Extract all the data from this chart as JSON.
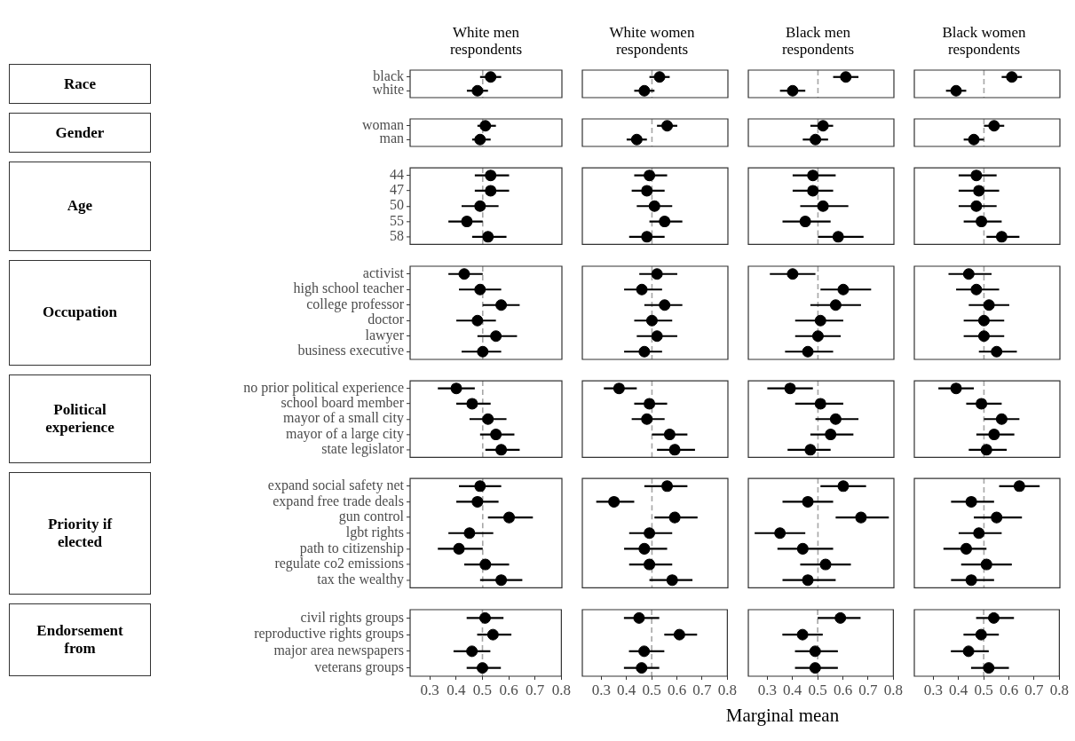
{
  "chart_data": [
    {
      "type": "scatter",
      "title": "White men respondents",
      "ylabel": "Race",
      "orientation": "horizontal",
      "categories": [
        "black",
        "white"
      ],
      "values": [
        0.53,
        0.48
      ],
      "errors": [
        [
          0.49,
          0.57
        ],
        [
          0.44,
          0.52
        ]
      ],
      "color": "#000000",
      "marker": "circle",
      "xlim": [
        0.225,
        0.8
      ],
      "xticks": [
        0.3,
        0.4,
        0.5,
        0.6,
        0.7,
        0.8
      ],
      "tick_labels": "y",
      "grid": false,
      "ref_lines": [
        {
          "axis": "x",
          "value": 0.5,
          "color": "#a6a6a6",
          "line_style": "dashed"
        }
      ]
    },
    {
      "type": "scatter",
      "title": "White women respondents",
      "orientation": "horizontal",
      "categories": [
        "black",
        "white"
      ],
      "values": [
        0.53,
        0.47
      ],
      "errors": [
        [
          0.49,
          0.57
        ],
        [
          0.43,
          0.51
        ]
      ],
      "color": "#000000",
      "marker": "circle",
      "xlim": [
        0.225,
        0.8
      ],
      "xticks": [
        0.3,
        0.4,
        0.5,
        0.6,
        0.7,
        0.8
      ],
      "tick_labels": false,
      "grid": false,
      "ref_lines": [
        {
          "axis": "x",
          "value": 0.5,
          "color": "#a6a6a6",
          "line_style": "dashed"
        }
      ]
    },
    {
      "type": "scatter",
      "title": "Black men respondents",
      "orientation": "horizontal",
      "categories": [
        "black",
        "white"
      ],
      "values": [
        0.61,
        0.4
      ],
      "errors": [
        [
          0.56,
          0.66
        ],
        [
          0.35,
          0.45
        ]
      ],
      "color": "#000000",
      "marker": "circle",
      "xlim": [
        0.225,
        0.8
      ],
      "xticks": [
        0.3,
        0.4,
        0.5,
        0.6,
        0.7,
        0.8
      ],
      "tick_labels": false,
      "grid": false,
      "ref_lines": [
        {
          "axis": "x",
          "value": 0.5,
          "color": "#a6a6a6",
          "line_style": "dashed"
        }
      ]
    },
    {
      "type": "scatter",
      "title": "Black women respondents",
      "orientation": "horizontal",
      "categories": [
        "black",
        "white"
      ],
      "values": [
        0.61,
        0.39
      ],
      "errors": [
        [
          0.57,
          0.65
        ],
        [
          0.35,
          0.43
        ]
      ],
      "color": "#000000",
      "marker": "circle",
      "xlim": [
        0.225,
        0.8
      ],
      "xticks": [
        0.3,
        0.4,
        0.5,
        0.6,
        0.7,
        0.8
      ],
      "tick_labels": false,
      "grid": false,
      "ref_lines": [
        {
          "axis": "x",
          "value": 0.5,
          "color": "#a6a6a6",
          "line_style": "dashed"
        }
      ]
    },
    {
      "type": "scatter",
      "ylabel": "Gender",
      "orientation": "horizontal",
      "categories": [
        "woman",
        "man"
      ],
      "values": [
        0.51,
        0.49
      ],
      "errors": [
        [
          0.48,
          0.55
        ],
        [
          0.46,
          0.53
        ]
      ],
      "color": "#000000",
      "marker": "circle",
      "xlim": [
        0.225,
        0.8
      ],
      "xticks": [
        0.3,
        0.4,
        0.5,
        0.6,
        0.7,
        0.8
      ],
      "tick_labels": "y",
      "grid": false,
      "ref_lines": [
        {
          "axis": "x",
          "value": 0.5,
          "color": "#a6a6a6",
          "line_style": "dashed"
        }
      ]
    },
    {
      "type": "scatter",
      "orientation": "horizontal",
      "categories": [
        "woman",
        "man"
      ],
      "values": [
        0.56,
        0.44
      ],
      "errors": [
        [
          0.52,
          0.6
        ],
        [
          0.4,
          0.48
        ]
      ],
      "color": "#000000",
      "marker": "circle",
      "xlim": [
        0.225,
        0.8
      ],
      "xticks": [
        0.3,
        0.4,
        0.5,
        0.6,
        0.7,
        0.8
      ],
      "tick_labels": false,
      "grid": false,
      "ref_lines": [
        {
          "axis": "x",
          "value": 0.5,
          "color": "#a6a6a6",
          "line_style": "dashed"
        }
      ]
    },
    {
      "type": "scatter",
      "orientation": "horizontal",
      "categories": [
        "woman",
        "man"
      ],
      "values": [
        0.52,
        0.49
      ],
      "errors": [
        [
          0.47,
          0.56
        ],
        [
          0.44,
          0.54
        ]
      ],
      "color": "#000000",
      "marker": "circle",
      "xlim": [
        0.225,
        0.8
      ],
      "xticks": [
        0.3,
        0.4,
        0.5,
        0.6,
        0.7,
        0.8
      ],
      "tick_labels": false,
      "grid": false,
      "ref_lines": [
        {
          "axis": "x",
          "value": 0.5,
          "color": "#a6a6a6",
          "line_style": "dashed"
        }
      ]
    },
    {
      "type": "scatter",
      "orientation": "horizontal",
      "categories": [
        "woman",
        "man"
      ],
      "values": [
        0.54,
        0.46
      ],
      "errors": [
        [
          0.5,
          0.58
        ],
        [
          0.42,
          0.5
        ]
      ],
      "color": "#000000",
      "marker": "circle",
      "xlim": [
        0.225,
        0.8
      ],
      "xticks": [
        0.3,
        0.4,
        0.5,
        0.6,
        0.7,
        0.8
      ],
      "tick_labels": false,
      "grid": false,
      "ref_lines": [
        {
          "axis": "x",
          "value": 0.5,
          "color": "#a6a6a6",
          "line_style": "dashed"
        }
      ]
    },
    {
      "type": "scatter",
      "ylabel": "Age",
      "orientation": "horizontal",
      "categories": [
        "44",
        "47",
        "50",
        "55",
        "58"
      ],
      "values": [
        0.53,
        0.53,
        0.49,
        0.44,
        0.52
      ],
      "errors": [
        [
          0.47,
          0.6
        ],
        [
          0.47,
          0.6
        ],
        [
          0.42,
          0.56
        ],
        [
          0.37,
          0.5
        ],
        [
          0.46,
          0.59
        ]
      ],
      "color": "#000000",
      "marker": "circle",
      "xlim": [
        0.225,
        0.8
      ],
      "xticks": [
        0.3,
        0.4,
        0.5,
        0.6,
        0.7,
        0.8
      ],
      "tick_labels": "y",
      "grid": false,
      "ref_lines": [
        {
          "axis": "x",
          "value": 0.5,
          "color": "#a6a6a6",
          "line_style": "dashed"
        }
      ]
    },
    {
      "type": "scatter",
      "orientation": "horizontal",
      "categories": [
        "44",
        "47",
        "50",
        "55",
        "58"
      ],
      "values": [
        0.49,
        0.48,
        0.51,
        0.55,
        0.48
      ],
      "errors": [
        [
          0.43,
          0.56
        ],
        [
          0.42,
          0.55
        ],
        [
          0.44,
          0.58
        ],
        [
          0.49,
          0.62
        ],
        [
          0.41,
          0.55
        ]
      ],
      "color": "#000000",
      "marker": "circle",
      "xlim": [
        0.225,
        0.8
      ],
      "xticks": [
        0.3,
        0.4,
        0.5,
        0.6,
        0.7,
        0.8
      ],
      "tick_labels": false,
      "grid": false,
      "ref_lines": [
        {
          "axis": "x",
          "value": 0.5,
          "color": "#a6a6a6",
          "line_style": "dashed"
        }
      ]
    },
    {
      "type": "scatter",
      "orientation": "horizontal",
      "categories": [
        "44",
        "47",
        "50",
        "55",
        "58"
      ],
      "values": [
        0.48,
        0.48,
        0.52,
        0.45,
        0.58
      ],
      "errors": [
        [
          0.4,
          0.57
        ],
        [
          0.4,
          0.56
        ],
        [
          0.43,
          0.62
        ],
        [
          0.36,
          0.55
        ],
        [
          0.5,
          0.68
        ]
      ],
      "color": "#000000",
      "marker": "circle",
      "xlim": [
        0.225,
        0.8
      ],
      "xticks": [
        0.3,
        0.4,
        0.5,
        0.6,
        0.7,
        0.8
      ],
      "tick_labels": false,
      "grid": false,
      "ref_lines": [
        {
          "axis": "x",
          "value": 0.5,
          "color": "#a6a6a6",
          "line_style": "dashed"
        }
      ]
    },
    {
      "type": "scatter",
      "orientation": "horizontal",
      "categories": [
        "44",
        "47",
        "50",
        "55",
        "58"
      ],
      "values": [
        0.47,
        0.48,
        0.47,
        0.49,
        0.57
      ],
      "errors": [
        [
          0.4,
          0.55
        ],
        [
          0.4,
          0.56
        ],
        [
          0.4,
          0.55
        ],
        [
          0.42,
          0.57
        ],
        [
          0.51,
          0.64
        ]
      ],
      "color": "#000000",
      "marker": "circle",
      "xlim": [
        0.225,
        0.8
      ],
      "xticks": [
        0.3,
        0.4,
        0.5,
        0.6,
        0.7,
        0.8
      ],
      "tick_labels": false,
      "grid": false,
      "ref_lines": [
        {
          "axis": "x",
          "value": 0.5,
          "color": "#a6a6a6",
          "line_style": "dashed"
        }
      ]
    },
    {
      "type": "scatter",
      "ylabel": "Occupation",
      "orientation": "horizontal",
      "categories": [
        "activist",
        "high school teacher",
        "college professor",
        "doctor",
        "lawyer",
        "business executive"
      ],
      "values": [
        0.43,
        0.49,
        0.57,
        0.48,
        0.55,
        0.5
      ],
      "errors": [
        [
          0.37,
          0.5
        ],
        [
          0.41,
          0.57
        ],
        [
          0.5,
          0.64
        ],
        [
          0.4,
          0.55
        ],
        [
          0.48,
          0.63
        ],
        [
          0.42,
          0.57
        ]
      ],
      "color": "#000000",
      "marker": "circle",
      "xlim": [
        0.225,
        0.8
      ],
      "xticks": [
        0.3,
        0.4,
        0.5,
        0.6,
        0.7,
        0.8
      ],
      "tick_labels": "y",
      "grid": false,
      "ref_lines": [
        {
          "axis": "x",
          "value": 0.5,
          "color": "#a6a6a6",
          "line_style": "dashed"
        }
      ]
    },
    {
      "type": "scatter",
      "orientation": "horizontal",
      "categories": [
        "activist",
        "high school teacher",
        "college professor",
        "doctor",
        "lawyer",
        "business executive"
      ],
      "values": [
        0.52,
        0.46,
        0.55,
        0.5,
        0.52,
        0.47
      ],
      "errors": [
        [
          0.45,
          0.6
        ],
        [
          0.39,
          0.54
        ],
        [
          0.47,
          0.62
        ],
        [
          0.43,
          0.58
        ],
        [
          0.44,
          0.6
        ],
        [
          0.39,
          0.54
        ]
      ],
      "color": "#000000",
      "marker": "circle",
      "xlim": [
        0.225,
        0.8
      ],
      "xticks": [
        0.3,
        0.4,
        0.5,
        0.6,
        0.7,
        0.8
      ],
      "tick_labels": false,
      "grid": false,
      "ref_lines": [
        {
          "axis": "x",
          "value": 0.5,
          "color": "#a6a6a6",
          "line_style": "dashed"
        }
      ]
    },
    {
      "type": "scatter",
      "orientation": "horizontal",
      "categories": [
        "activist",
        "high school teacher",
        "college professor",
        "doctor",
        "lawyer",
        "business executive"
      ],
      "values": [
        0.4,
        0.6,
        0.57,
        0.51,
        0.5,
        0.46
      ],
      "errors": [
        [
          0.31,
          0.49
        ],
        [
          0.51,
          0.71
        ],
        [
          0.47,
          0.67
        ],
        [
          0.41,
          0.6
        ],
        [
          0.41,
          0.59
        ],
        [
          0.37,
          0.56
        ]
      ],
      "color": "#000000",
      "marker": "circle",
      "xlim": [
        0.225,
        0.8
      ],
      "xticks": [
        0.3,
        0.4,
        0.5,
        0.6,
        0.7,
        0.8
      ],
      "tick_labels": false,
      "grid": false,
      "ref_lines": [
        {
          "axis": "x",
          "value": 0.5,
          "color": "#a6a6a6",
          "line_style": "dashed"
        }
      ]
    },
    {
      "type": "scatter",
      "orientation": "horizontal",
      "categories": [
        "activist",
        "high school teacher",
        "college professor",
        "doctor",
        "lawyer",
        "business executive"
      ],
      "values": [
        0.44,
        0.47,
        0.52,
        0.5,
        0.5,
        0.55
      ],
      "errors": [
        [
          0.36,
          0.53
        ],
        [
          0.39,
          0.56
        ],
        [
          0.44,
          0.6
        ],
        [
          0.42,
          0.58
        ],
        [
          0.42,
          0.58
        ],
        [
          0.48,
          0.63
        ]
      ],
      "color": "#000000",
      "marker": "circle",
      "xlim": [
        0.225,
        0.8
      ],
      "xticks": [
        0.3,
        0.4,
        0.5,
        0.6,
        0.7,
        0.8
      ],
      "tick_labels": false,
      "grid": false,
      "ref_lines": [
        {
          "axis": "x",
          "value": 0.5,
          "color": "#a6a6a6",
          "line_style": "dashed"
        }
      ]
    },
    {
      "type": "scatter",
      "ylabel": "Political experience",
      "orientation": "horizontal",
      "categories": [
        "no prior political experience",
        "school board member",
        "mayor of a small city",
        "mayor of a large city",
        "state legislator"
      ],
      "values": [
        0.4,
        0.46,
        0.52,
        0.55,
        0.57
      ],
      "errors": [
        [
          0.33,
          0.47
        ],
        [
          0.4,
          0.53
        ],
        [
          0.45,
          0.59
        ],
        [
          0.49,
          0.62
        ],
        [
          0.51,
          0.64
        ]
      ],
      "color": "#000000",
      "marker": "circle",
      "xlim": [
        0.225,
        0.8
      ],
      "xticks": [
        0.3,
        0.4,
        0.5,
        0.6,
        0.7,
        0.8
      ],
      "tick_labels": "y",
      "grid": false,
      "ref_lines": [
        {
          "axis": "x",
          "value": 0.5,
          "color": "#a6a6a6",
          "line_style": "dashed"
        }
      ]
    },
    {
      "type": "scatter",
      "orientation": "horizontal",
      "categories": [
        "no prior political experience",
        "school board member",
        "mayor of a small city",
        "mayor of a large city",
        "state legislator"
      ],
      "values": [
        0.37,
        0.49,
        0.48,
        0.57,
        0.59
      ],
      "errors": [
        [
          0.31,
          0.44
        ],
        [
          0.43,
          0.56
        ],
        [
          0.42,
          0.55
        ],
        [
          0.5,
          0.64
        ],
        [
          0.52,
          0.67
        ]
      ],
      "color": "#000000",
      "marker": "circle",
      "xlim": [
        0.225,
        0.8
      ],
      "xticks": [
        0.3,
        0.4,
        0.5,
        0.6,
        0.7,
        0.8
      ],
      "tick_labels": false,
      "grid": false,
      "ref_lines": [
        {
          "axis": "x",
          "value": 0.5,
          "color": "#a6a6a6",
          "line_style": "dashed"
        }
      ]
    },
    {
      "type": "scatter",
      "orientation": "horizontal",
      "categories": [
        "no prior political experience",
        "school board member",
        "mayor of a small city",
        "mayor of a large city",
        "state legislator"
      ],
      "values": [
        0.39,
        0.51,
        0.57,
        0.55,
        0.47
      ],
      "errors": [
        [
          0.3,
          0.48
        ],
        [
          0.41,
          0.6
        ],
        [
          0.49,
          0.66
        ],
        [
          0.47,
          0.64
        ],
        [
          0.38,
          0.55
        ]
      ],
      "color": "#000000",
      "marker": "circle",
      "xlim": [
        0.225,
        0.8
      ],
      "xticks": [
        0.3,
        0.4,
        0.5,
        0.6,
        0.7,
        0.8
      ],
      "tick_labels": false,
      "grid": false,
      "ref_lines": [
        {
          "axis": "x",
          "value": 0.5,
          "color": "#a6a6a6",
          "line_style": "dashed"
        }
      ]
    },
    {
      "type": "scatter",
      "orientation": "horizontal",
      "categories": [
        "no prior political experience",
        "school board member",
        "mayor of a small city",
        "mayor of a large city",
        "state legislator"
      ],
      "values": [
        0.39,
        0.49,
        0.57,
        0.54,
        0.51
      ],
      "errors": [
        [
          0.32,
          0.46
        ],
        [
          0.43,
          0.57
        ],
        [
          0.5,
          0.64
        ],
        [
          0.47,
          0.62
        ],
        [
          0.44,
          0.59
        ]
      ],
      "color": "#000000",
      "marker": "circle",
      "xlim": [
        0.225,
        0.8
      ],
      "xticks": [
        0.3,
        0.4,
        0.5,
        0.6,
        0.7,
        0.8
      ],
      "tick_labels": false,
      "grid": false,
      "ref_lines": [
        {
          "axis": "x",
          "value": 0.5,
          "color": "#a6a6a6",
          "line_style": "dashed"
        }
      ]
    },
    {
      "type": "scatter",
      "ylabel": "Priority if elected",
      "orientation": "horizontal",
      "categories": [
        "expand social safety net",
        "expand free trade deals",
        "gun control",
        "lgbt rights",
        "path to citizenship",
        "regulate co2 emissions",
        "tax the wealthy"
      ],
      "values": [
        0.49,
        0.48,
        0.6,
        0.45,
        0.41,
        0.51,
        0.57
      ],
      "errors": [
        [
          0.41,
          0.57
        ],
        [
          0.4,
          0.56
        ],
        [
          0.52,
          0.69
        ],
        [
          0.37,
          0.54
        ],
        [
          0.33,
          0.5
        ],
        [
          0.43,
          0.6
        ],
        [
          0.49,
          0.65
        ]
      ],
      "color": "#000000",
      "marker": "circle",
      "xlim": [
        0.225,
        0.8
      ],
      "xticks": [
        0.3,
        0.4,
        0.5,
        0.6,
        0.7,
        0.8
      ],
      "tick_labels": "y",
      "grid": false,
      "ref_lines": [
        {
          "axis": "x",
          "value": 0.5,
          "color": "#a6a6a6",
          "line_style": "dashed"
        }
      ]
    },
    {
      "type": "scatter",
      "orientation": "horizontal",
      "categories": [
        "expand social safety net",
        "expand free trade deals",
        "gun control",
        "lgbt rights",
        "path to citizenship",
        "regulate co2 emissions",
        "tax the wealthy"
      ],
      "values": [
        0.56,
        0.35,
        0.59,
        0.49,
        0.47,
        0.49,
        0.58
      ],
      "errors": [
        [
          0.47,
          0.64
        ],
        [
          0.28,
          0.43
        ],
        [
          0.51,
          0.68
        ],
        [
          0.41,
          0.58
        ],
        [
          0.39,
          0.56
        ],
        [
          0.41,
          0.58
        ],
        [
          0.49,
          0.66
        ]
      ],
      "color": "#000000",
      "marker": "circle",
      "xlim": [
        0.225,
        0.8
      ],
      "xticks": [
        0.3,
        0.4,
        0.5,
        0.6,
        0.7,
        0.8
      ],
      "tick_labels": false,
      "grid": false,
      "ref_lines": [
        {
          "axis": "x",
          "value": 0.5,
          "color": "#a6a6a6",
          "line_style": "dashed"
        }
      ]
    },
    {
      "type": "scatter",
      "orientation": "horizontal",
      "categories": [
        "expand social safety net",
        "expand free trade deals",
        "gun control",
        "lgbt rights",
        "path to citizenship",
        "regulate co2 emissions",
        "tax the wealthy"
      ],
      "values": [
        0.6,
        0.46,
        0.67,
        0.35,
        0.44,
        0.53,
        0.46
      ],
      "errors": [
        [
          0.51,
          0.69
        ],
        [
          0.36,
          0.56
        ],
        [
          0.57,
          0.78
        ],
        [
          0.25,
          0.45
        ],
        [
          0.34,
          0.56
        ],
        [
          0.43,
          0.63
        ],
        [
          0.36,
          0.57
        ]
      ],
      "color": "#000000",
      "marker": "circle",
      "xlim": [
        0.225,
        0.8
      ],
      "xticks": [
        0.3,
        0.4,
        0.5,
        0.6,
        0.7,
        0.8
      ],
      "tick_labels": false,
      "grid": false,
      "ref_lines": [
        {
          "axis": "x",
          "value": 0.5,
          "color": "#a6a6a6",
          "line_style": "dashed"
        }
      ]
    },
    {
      "type": "scatter",
      "orientation": "horizontal",
      "categories": [
        "expand social safety net",
        "expand free trade deals",
        "gun control",
        "lgbt rights",
        "path to citizenship",
        "regulate co2 emissions",
        "tax the wealthy"
      ],
      "values": [
        0.64,
        0.45,
        0.55,
        0.48,
        0.43,
        0.51,
        0.45
      ],
      "errors": [
        [
          0.56,
          0.72
        ],
        [
          0.37,
          0.54
        ],
        [
          0.46,
          0.65
        ],
        [
          0.4,
          0.57
        ],
        [
          0.34,
          0.51
        ],
        [
          0.41,
          0.61
        ],
        [
          0.37,
          0.54
        ]
      ],
      "color": "#000000",
      "marker": "circle",
      "xlim": [
        0.225,
        0.8
      ],
      "xticks": [
        0.3,
        0.4,
        0.5,
        0.6,
        0.7,
        0.8
      ],
      "tick_labels": false,
      "grid": false,
      "ref_lines": [
        {
          "axis": "x",
          "value": 0.5,
          "color": "#a6a6a6",
          "line_style": "dashed"
        }
      ]
    },
    {
      "type": "scatter",
      "ylabel": "Endorsement from",
      "orientation": "horizontal",
      "categories": [
        "civil rights groups",
        "reproductive rights groups",
        "major area newspapers",
        "veterans groups"
      ],
      "values": [
        0.51,
        0.54,
        0.46,
        0.5
      ],
      "errors": [
        [
          0.44,
          0.58
        ],
        [
          0.48,
          0.61
        ],
        [
          0.39,
          0.53
        ],
        [
          0.44,
          0.57
        ]
      ],
      "color": "#000000",
      "marker": "circle",
      "xlim": [
        0.225,
        0.8
      ],
      "xticks": [
        0.3,
        0.4,
        0.5,
        0.6,
        0.7,
        0.8
      ],
      "grid": false,
      "ref_lines": [
        {
          "axis": "x",
          "value": 0.5,
          "color": "#a6a6a6",
          "line_style": "dashed"
        }
      ]
    },
    {
      "type": "scatter",
      "orientation": "horizontal",
      "categories": [
        "civil rights groups",
        "reproductive rights groups",
        "major area newspapers",
        "veterans groups"
      ],
      "values": [
        0.45,
        0.61,
        0.47,
        0.46
      ],
      "errors": [
        [
          0.39,
          0.53
        ],
        [
          0.55,
          0.68
        ],
        [
          0.41,
          0.55
        ],
        [
          0.39,
          0.53
        ]
      ],
      "color": "#000000",
      "marker": "circle",
      "xlim": [
        0.225,
        0.8
      ],
      "xticks": [
        0.3,
        0.4,
        0.5,
        0.6,
        0.7,
        0.8
      ],
      "tick_labels": "x",
      "grid": false,
      "ref_lines": [
        {
          "axis": "x",
          "value": 0.5,
          "color": "#a6a6a6",
          "line_style": "dashed"
        }
      ]
    },
    {
      "type": "scatter",
      "xlabel": "Marginal mean",
      "orientation": "horizontal",
      "categories": [
        "civil rights groups",
        "reproductive rights groups",
        "major area newspapers",
        "veterans groups"
      ],
      "values": [
        0.59,
        0.44,
        0.49,
        0.49
      ],
      "errors": [
        [
          0.5,
          0.67
        ],
        [
          0.36,
          0.52
        ],
        [
          0.41,
          0.58
        ],
        [
          0.41,
          0.58
        ]
      ],
      "color": "#000000",
      "marker": "circle",
      "xlim": [
        0.225,
        0.8
      ],
      "xticks": [
        0.3,
        0.4,
        0.5,
        0.6,
        0.7,
        0.8
      ],
      "tick_labels": "x",
      "grid": false,
      "ref_lines": [
        {
          "axis": "x",
          "value": 0.5,
          "color": "#a6a6a6",
          "line_style": "dashed"
        }
      ]
    },
    {
      "type": "scatter",
      "orientation": "horizontal",
      "categories": [
        "civil rights groups",
        "reproductive rights groups",
        "major area newspapers",
        "veterans groups"
      ],
      "values": [
        0.54,
        0.49,
        0.44,
        0.52
      ],
      "errors": [
        [
          0.47,
          0.62
        ],
        [
          0.42,
          0.56
        ],
        [
          0.37,
          0.52
        ],
        [
          0.45,
          0.6
        ]
      ],
      "color": "#000000",
      "marker": "circle",
      "xlim": [
        0.225,
        0.8
      ],
      "xticks": [
        0.3,
        0.4,
        0.5,
        0.6,
        0.7,
        0.8
      ],
      "tick_labels": "x",
      "grid": false,
      "ref_lines": [
        {
          "axis": "x",
          "value": 0.5,
          "color": "#a6a6a6",
          "line_style": "dashed"
        }
      ]
    }
  ]
}
